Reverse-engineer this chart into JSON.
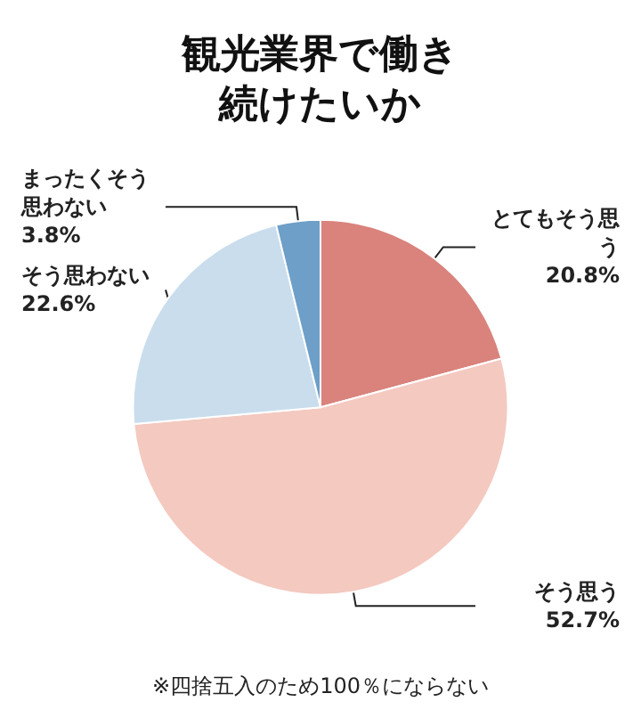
{
  "chart_data": {
    "type": "pie",
    "title": "観光業界で働き続けたいか",
    "categories": [
      "とてもそう思う",
      "そう思う",
      "そう思わない",
      "まったくそう思わない"
    ],
    "values": [
      20.8,
      52.7,
      22.6,
      3.8
    ],
    "colors": [
      "#d9837c",
      "#f4c9c0",
      "#c9dded",
      "#6d9fc8"
    ],
    "value_labels": [
      "20.8%",
      "52.7%",
      "22.6%",
      "3.8%"
    ],
    "annotations": [
      "※四捨五入のため100％にならない"
    ]
  }
}
